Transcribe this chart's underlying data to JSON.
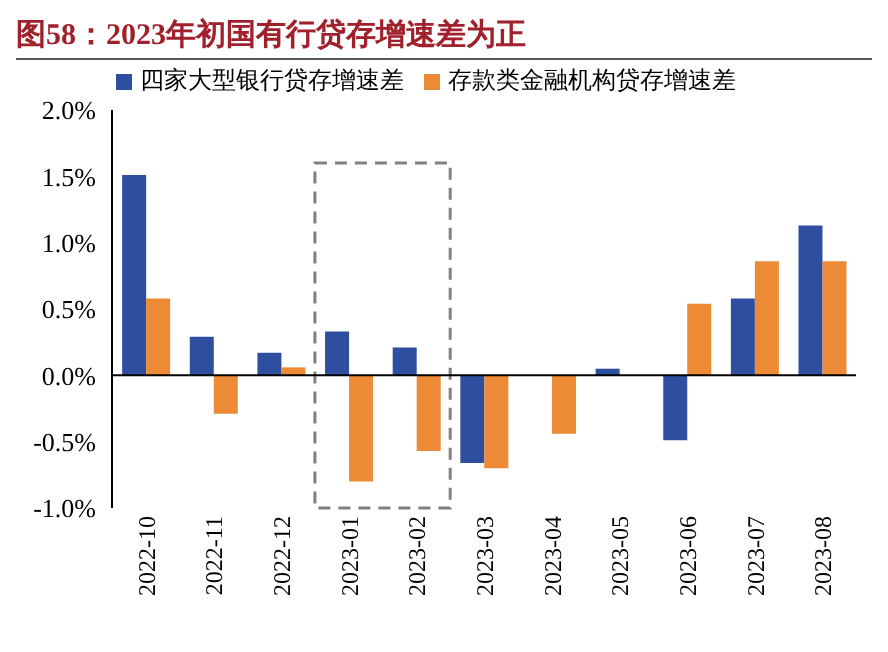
{
  "chart_data": {
    "type": "bar",
    "title": "图58：2023年初国有行贷存增速差为正",
    "categories": [
      "2022-10",
      "2022-11",
      "2022-12",
      "2023-01",
      "2023-02",
      "2023-03",
      "2023-04",
      "2023-05",
      "2023-06",
      "2023-07",
      "2023-08"
    ],
    "series": [
      {
        "name": "四家大型银行贷存增速差",
        "color": "#2e4fa0",
        "values": [
          1.51,
          0.29,
          0.17,
          0.33,
          0.21,
          -0.66,
          null,
          0.05,
          -0.49,
          0.58,
          1.13
        ]
      },
      {
        "name": "存款类金融机构贷存增速差",
        "color": "#ed8a35",
        "values": [
          0.58,
          -0.29,
          0.06,
          -0.8,
          -0.57,
          -0.7,
          -0.44,
          null,
          0.54,
          0.86,
          0.86
        ]
      }
    ],
    "ylim": [
      -1.0,
      2.0
    ],
    "yticks": [
      {
        "value": -1.0,
        "label": "-1.0%"
      },
      {
        "value": -0.5,
        "label": "-0.5%"
      },
      {
        "value": 0,
        "label": "0.0%"
      },
      {
        "value": 0.5,
        "label": "0.5%"
      },
      {
        "value": 1.0,
        "label": "1.0%"
      },
      {
        "value": 1.5,
        "label": "1.5%"
      },
      {
        "value": 2.0,
        "label": "2.0%"
      }
    ],
    "legend": "top"
  }
}
